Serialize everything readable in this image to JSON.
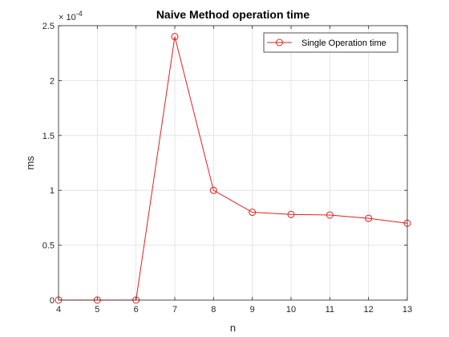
{
  "chart_data": {
    "type": "line",
    "title": "Naive Method operation time",
    "xlabel": "n",
    "ylabel": "ms",
    "xlim": [
      4,
      13
    ],
    "ylim": [
      0,
      0.00025
    ],
    "x_ticks": [
      4,
      5,
      6,
      7,
      8,
      9,
      10,
      11,
      12,
      13
    ],
    "x_tick_labels": [
      "4",
      "5",
      "6",
      "7",
      "8",
      "9",
      "10",
      "11",
      "12",
      "13"
    ],
    "y_ticks": [
      0,
      5e-05,
      0.0001,
      0.00015,
      0.0002,
      0.00025
    ],
    "y_tick_labels": [
      "0",
      "0.5",
      "1",
      "1.5",
      "2",
      "2.5"
    ],
    "y_exponent_label": "× 10",
    "y_exponent_power": "-4",
    "grid": true,
    "legend_position": "top-right",
    "series": [
      {
        "name": "Single Operation time",
        "color": "#e02020",
        "marker": "circle",
        "x": [
          4,
          5,
          6,
          7,
          8,
          9,
          10,
          11,
          12,
          13
        ],
        "y": [
          0,
          0,
          0,
          0.00024,
          0.0001,
          8e-05,
          7.8e-05,
          7.75e-05,
          7.45e-05,
          7e-05
        ]
      }
    ]
  }
}
